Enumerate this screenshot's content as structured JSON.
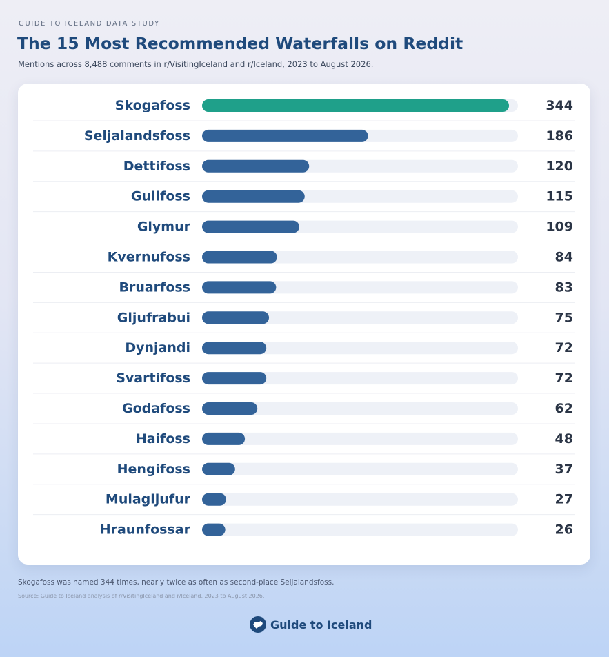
{
  "header": {
    "eyebrow": "GUIDE TO ICELAND DATA STUDY",
    "title": "The 15 Most Recommended Waterfalls on Reddit",
    "subtitle": "Mentions across 8,488 comments in r/VisitingIceland and r/Iceland, 2023 to August 2026."
  },
  "chart_data": {
    "type": "bar",
    "orientation": "horizontal",
    "categories": [
      "Skogafoss",
      "Seljalandsfoss",
      "Dettifoss",
      "Gullfoss",
      "Glymur",
      "Kvernufoss",
      "Bruarfoss",
      "Gljufrabui",
      "Dynjandi",
      "Svartifoss",
      "Godafoss",
      "Haifoss",
      "Hengifoss",
      "Mulagljufur",
      "Hraunfossar"
    ],
    "values": [
      344,
      186,
      120,
      115,
      109,
      84,
      83,
      75,
      72,
      72,
      62,
      48,
      37,
      27,
      26
    ],
    "xlim": [
      0,
      354
    ],
    "highlight_index": 0,
    "colors": {
      "highlight": "#1fa08a",
      "bar": "#336399",
      "track": "#eef1f7",
      "divider": "#eceef3"
    }
  },
  "footer": {
    "note": "Skogafoss was named 344 times, nearly twice as often as second-place Seljalandsfoss.",
    "source": "Source: Guide to Iceland analysis of r/VisitingIceland and r/Iceland, 2023 to August 2026.",
    "brand": "Guide to Iceland"
  }
}
